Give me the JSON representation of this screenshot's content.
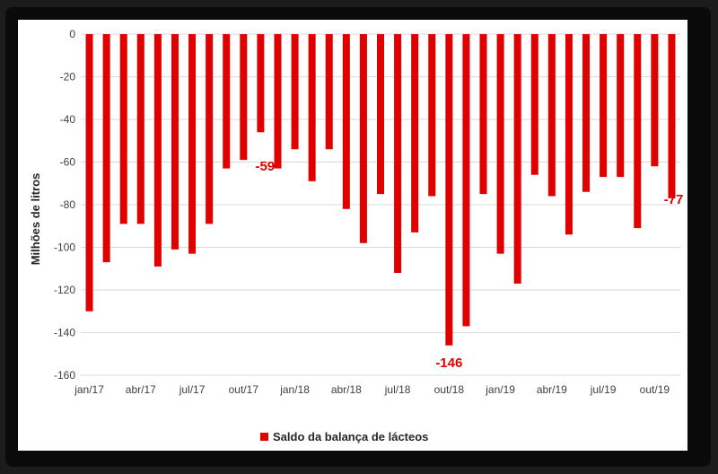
{
  "chart_data": {
    "type": "bar",
    "ylabel": "Milhões de litros",
    "ylim": [
      -160,
      0
    ],
    "yticks": [
      0,
      -20,
      -40,
      -60,
      -80,
      -100,
      -120,
      -140,
      -160
    ],
    "grid": true,
    "legend_position": "bottom",
    "bar_color": "#e00000",
    "label_color": "#e00000",
    "x_tick_labels": [
      "jan/17",
      "abr/17",
      "jul/17",
      "out/17",
      "jan/18",
      "abr/18",
      "jul/18",
      "out/18",
      "jan/19",
      "abr/19",
      "jul/19",
      "out/19"
    ],
    "categories": [
      "jan/17",
      "fev/17",
      "mar/17",
      "abr/17",
      "mai/17",
      "jun/17",
      "jul/17",
      "ago/17",
      "set/17",
      "out/17",
      "nov/17",
      "dez/17",
      "jan/18",
      "fev/18",
      "mar/18",
      "abr/18",
      "mai/18",
      "jun/18",
      "jul/18",
      "ago/18",
      "set/18",
      "out/18",
      "nov/18",
      "dez/18",
      "jan/19",
      "fev/19",
      "mar/19",
      "abr/19",
      "mai/19",
      "jun/19",
      "jul/19",
      "ago/19",
      "set/19",
      "out/19",
      "nov/19"
    ],
    "series": [
      {
        "name": "Saldo da balança de lácteos",
        "values": [
          -130,
          -107,
          -89,
          -89,
          -109,
          -101,
          -103,
          -89,
          -63,
          -59,
          -46,
          -63,
          -54,
          -69,
          -54,
          -82,
          -98,
          -75,
          -112,
          -93,
          -76,
          -146,
          -137,
          -75,
          -103,
          -117,
          -66,
          -76,
          -94,
          -74,
          -67,
          -67,
          -91,
          -62,
          -77
        ]
      }
    ],
    "data_labels": [
      {
        "index": 9,
        "text": "-59"
      },
      {
        "index": 21,
        "text": "-146"
      },
      {
        "index": 34,
        "text": "-77"
      }
    ]
  }
}
